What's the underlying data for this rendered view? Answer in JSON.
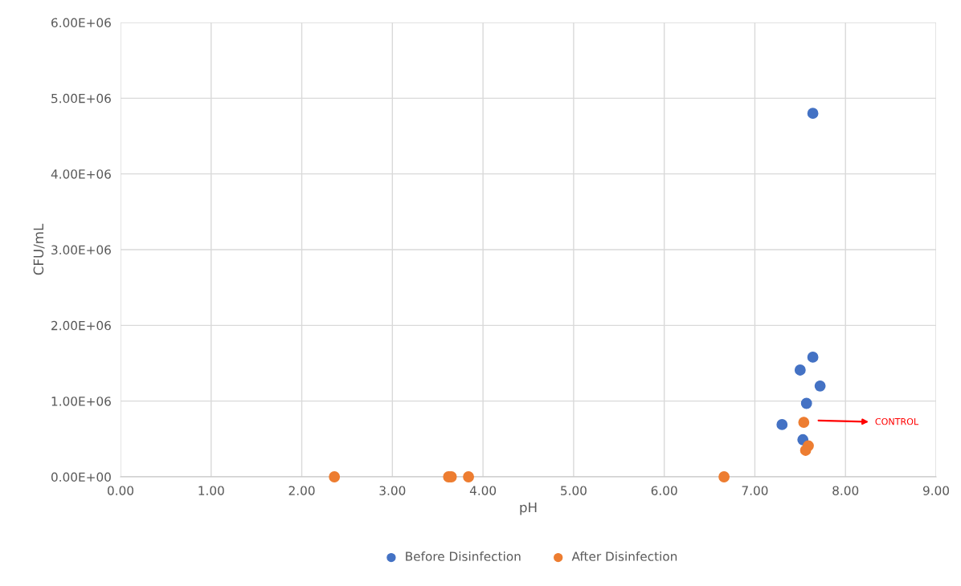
{
  "chart_data": {
    "type": "scatter",
    "xlabel": "pH",
    "ylabel": "CFU/mL",
    "xlim": [
      0,
      9
    ],
    "xticks": [
      {
        "value": 0,
        "label": "0.00"
      },
      {
        "value": 1,
        "label": "1.00"
      },
      {
        "value": 2,
        "label": "2.00"
      },
      {
        "value": 3,
        "label": "3.00"
      },
      {
        "value": 4,
        "label": "4.00"
      },
      {
        "value": 5,
        "label": "5.00"
      },
      {
        "value": 6,
        "label": "6.00"
      },
      {
        "value": 7,
        "label": "7.00"
      },
      {
        "value": 8,
        "label": "8.00"
      },
      {
        "value": 9,
        "label": "9.00"
      }
    ],
    "ylim": [
      0,
      6000000
    ],
    "yticks": [
      {
        "value": 0,
        "label": "0.00E+00"
      },
      {
        "value": 1000000,
        "label": "1.00E+06"
      },
      {
        "value": 2000000,
        "label": "2.00E+06"
      },
      {
        "value": 3000000,
        "label": "3.00E+06"
      },
      {
        "value": 4000000,
        "label": "4.00E+06"
      },
      {
        "value": 5000000,
        "label": "5.00E+06"
      },
      {
        "value": 6000000,
        "label": "6.00E+06"
      }
    ],
    "grid": true,
    "legend": "bottom",
    "marker": "circle",
    "series": [
      {
        "name": "Before Disinfection",
        "color": "#4472c4",
        "x": [
          7.64,
          7.64,
          7.5,
          7.72,
          7.57,
          7.3,
          7.53
        ],
        "values": [
          4800000,
          1580000,
          1410000,
          1200000,
          970000,
          690000,
          490000
        ]
      },
      {
        "name": "After Disinfection",
        "color": "#ed7d31",
        "x": [
          2.36,
          3.62,
          3.65,
          3.84,
          6.66,
          7.54,
          7.59,
          7.56
        ],
        "values": [
          0,
          0,
          0,
          0,
          0,
          720000,
          410000,
          350000
        ]
      }
    ],
    "annotations": [
      "CONTROL"
    ]
  }
}
